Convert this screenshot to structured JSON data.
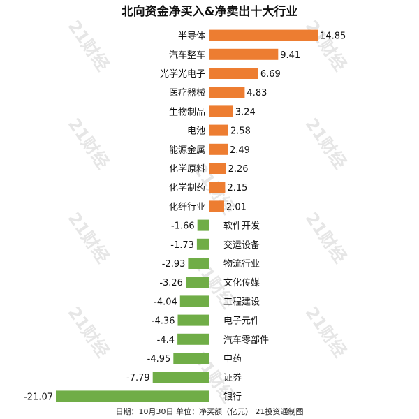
{
  "chart_data": {
    "type": "bar",
    "orientation": "horizontal",
    "title": "北向资金净买入&净卖出十大行业",
    "footer": "日期：10月30日 单位：净买额（亿元） 21投资通制图",
    "watermark": "21财经",
    "colors": {
      "positive": "#ed7d31",
      "negative": "#70ad47"
    },
    "categories": [
      "半导体",
      "汽车整车",
      "光学光电子",
      "医疗器械",
      "生物制品",
      "电池",
      "能源金属",
      "化学原料",
      "化学制药",
      "化纤行业",
      "软件开发",
      "交运设备",
      "物流行业",
      "文化传媒",
      "工程建设",
      "电子元件",
      "汽车零部件",
      "中药",
      "证券",
      "银行"
    ],
    "values": [
      14.85,
      9.41,
      6.69,
      4.83,
      3.24,
      2.58,
      2.49,
      2.26,
      2.15,
      2.01,
      -1.66,
      -1.73,
      -2.93,
      -3.26,
      -4.04,
      -4.36,
      -4.4,
      -4.95,
      -7.79,
      -21.07
    ],
    "value_labels": [
      "14.85",
      "9.41",
      "6.69",
      "4.83",
      "3.24",
      "2.58",
      "2.49",
      "2.26",
      "2.15",
      "2.01",
      "-1.66",
      "-1.73",
      "-2.93",
      "-3.26",
      "-4.04",
      "-4.36",
      "-4.4",
      "-4.95",
      "-7.79",
      "-21.07"
    ],
    "xlim": [
      -21.07,
      14.85
    ]
  }
}
